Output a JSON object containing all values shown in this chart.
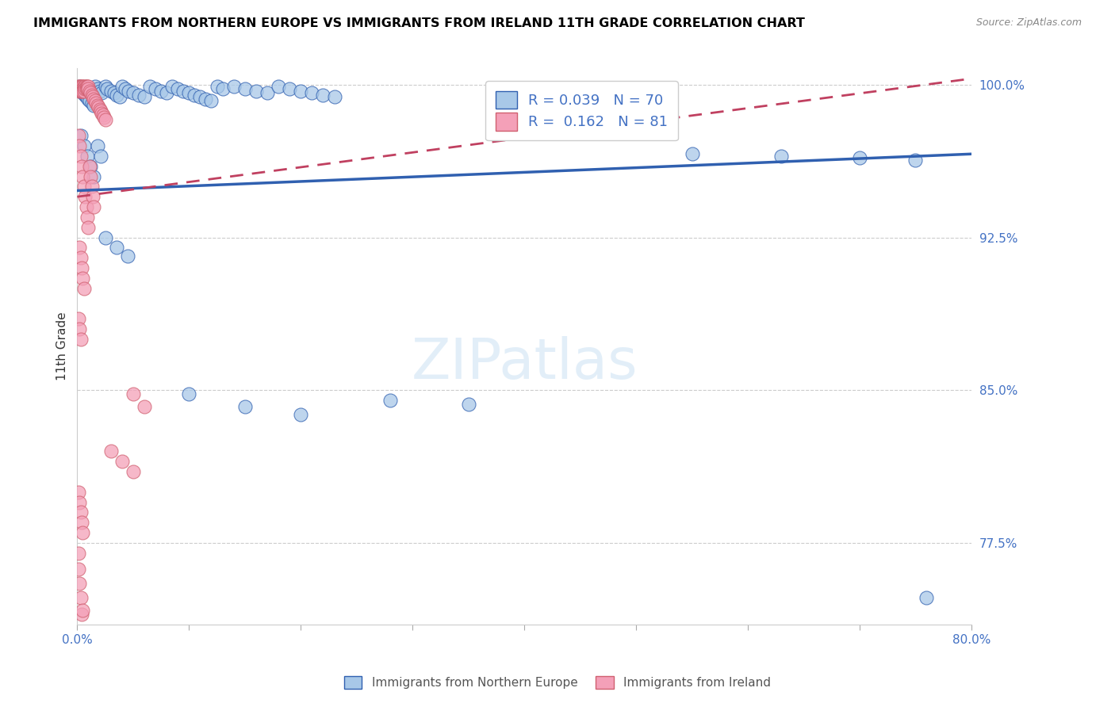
{
  "title": "IMMIGRANTS FROM NORTHERN EUROPE VS IMMIGRANTS FROM IRELAND 11TH GRADE CORRELATION CHART",
  "source": "Source: ZipAtlas.com",
  "ylabel": "11th Grade",
  "legend_labels": [
    "Immigrants from Northern Europe",
    "Immigrants from Ireland"
  ],
  "R_blue": 0.039,
  "N_blue": 70,
  "R_pink": 0.162,
  "N_pink": 81,
  "blue_color": "#a8c8e8",
  "pink_color": "#f4a0b8",
  "trend_blue": "#3060b0",
  "trend_pink": "#c04060",
  "xlim": [
    0.0,
    0.8
  ],
  "ylim": [
    0.735,
    1.008
  ],
  "ytick_vals": [
    0.775,
    0.85,
    0.925,
    1.0
  ],
  "ytick_labels": [
    "77.5%",
    "85.0%",
    "92.5%",
    "100.0%"
  ],
  "blue_x": [
    0.001,
    0.002,
    0.004,
    0.005,
    0.007,
    0.008,
    0.01,
    0.011,
    0.013,
    0.015,
    0.016,
    0.018,
    0.02,
    0.022,
    0.025,
    0.027,
    0.03,
    0.033,
    0.035,
    0.038,
    0.04,
    0.043,
    0.046,
    0.05,
    0.055,
    0.06,
    0.065,
    0.07,
    0.075,
    0.08,
    0.085,
    0.09,
    0.095,
    0.1,
    0.105,
    0.11,
    0.115,
    0.12,
    0.125,
    0.13,
    0.14,
    0.15,
    0.16,
    0.17,
    0.18,
    0.19,
    0.2,
    0.21,
    0.22,
    0.23,
    0.003,
    0.006,
    0.009,
    0.012,
    0.015,
    0.018,
    0.021,
    0.025,
    0.035,
    0.045,
    0.1,
    0.15,
    0.2,
    0.28,
    0.35,
    0.55,
    0.63,
    0.7,
    0.75,
    0.76
  ],
  "blue_y": [
    0.998,
    0.999,
    0.997,
    0.996,
    0.995,
    0.994,
    0.993,
    0.992,
    0.991,
    0.99,
    0.999,
    0.998,
    0.997,
    0.996,
    0.999,
    0.998,
    0.997,
    0.996,
    0.995,
    0.994,
    0.999,
    0.998,
    0.997,
    0.996,
    0.995,
    0.994,
    0.999,
    0.998,
    0.997,
    0.996,
    0.999,
    0.998,
    0.997,
    0.996,
    0.995,
    0.994,
    0.993,
    0.992,
    0.999,
    0.998,
    0.999,
    0.998,
    0.997,
    0.996,
    0.999,
    0.998,
    0.997,
    0.996,
    0.995,
    0.994,
    0.975,
    0.97,
    0.965,
    0.96,
    0.955,
    0.97,
    0.965,
    0.925,
    0.92,
    0.916,
    0.848,
    0.842,
    0.838,
    0.845,
    0.843,
    0.966,
    0.965,
    0.964,
    0.963,
    0.748
  ],
  "pink_x": [
    0.001,
    0.001,
    0.002,
    0.002,
    0.002,
    0.003,
    0.003,
    0.003,
    0.004,
    0.004,
    0.004,
    0.005,
    0.005,
    0.005,
    0.006,
    0.006,
    0.006,
    0.007,
    0.007,
    0.008,
    0.008,
    0.009,
    0.009,
    0.01,
    0.01,
    0.011,
    0.012,
    0.013,
    0.014,
    0.015,
    0.016,
    0.017,
    0.018,
    0.019,
    0.02,
    0.021,
    0.022,
    0.023,
    0.024,
    0.025,
    0.001,
    0.002,
    0.003,
    0.004,
    0.005,
    0.006,
    0.007,
    0.008,
    0.009,
    0.01,
    0.011,
    0.012,
    0.013,
    0.014,
    0.015,
    0.002,
    0.003,
    0.004,
    0.005,
    0.006,
    0.001,
    0.002,
    0.003,
    0.05,
    0.06,
    0.03,
    0.04,
    0.05,
    0.001,
    0.002,
    0.003,
    0.004,
    0.005,
    0.001,
    0.001,
    0.002,
    0.003,
    0.004,
    0.005
  ],
  "pink_y": [
    0.999,
    0.998,
    0.999,
    0.998,
    0.997,
    0.999,
    0.998,
    0.997,
    0.999,
    0.998,
    0.997,
    0.999,
    0.998,
    0.997,
    0.999,
    0.998,
    0.997,
    0.999,
    0.998,
    0.999,
    0.998,
    0.999,
    0.998,
    0.999,
    0.998,
    0.997,
    0.996,
    0.995,
    0.994,
    0.993,
    0.992,
    0.991,
    0.99,
    0.989,
    0.988,
    0.987,
    0.986,
    0.985,
    0.984,
    0.983,
    0.975,
    0.97,
    0.965,
    0.96,
    0.955,
    0.95,
    0.945,
    0.94,
    0.935,
    0.93,
    0.96,
    0.955,
    0.95,
    0.945,
    0.94,
    0.92,
    0.915,
    0.91,
    0.905,
    0.9,
    0.885,
    0.88,
    0.875,
    0.848,
    0.842,
    0.82,
    0.815,
    0.81,
    0.8,
    0.795,
    0.79,
    0.785,
    0.78,
    0.77,
    0.762,
    0.755,
    0.748,
    0.74,
    0.742
  ]
}
